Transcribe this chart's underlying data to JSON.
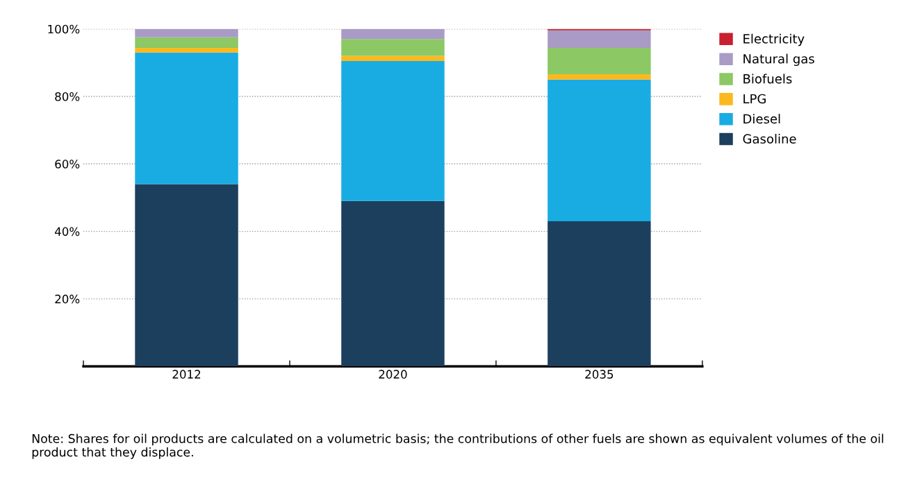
{
  "chart_data": {
    "type": "bar",
    "stacked": true,
    "categories": [
      "2012",
      "2020",
      "2035"
    ],
    "series": [
      {
        "name": "Gasoline",
        "color": "#1c3f5e",
        "values": [
          54,
          49,
          43
        ]
      },
      {
        "name": "Diesel",
        "color": "#19ace3",
        "values": [
          39,
          41.5,
          42
        ]
      },
      {
        "name": "LPG",
        "color": "#fbb91e",
        "values": [
          1.4,
          1.5,
          1.6
        ]
      },
      {
        "name": "Biofuels",
        "color": "#8cc864",
        "values": [
          3.1,
          5,
          7.8
        ]
      },
      {
        "name": "Natural gas",
        "color": "#a99bc6",
        "values": [
          2.5,
          3,
          5.2
        ]
      },
      {
        "name": "Electricity",
        "color": "#c8202f",
        "values": [
          0,
          0,
          0.4
        ]
      }
    ],
    "ylim": [
      0,
      100
    ],
    "yticks": [
      {
        "value": 20,
        "label": "20%"
      },
      {
        "value": 40,
        "label": "40%"
      },
      {
        "value": 60,
        "label": "60%"
      },
      {
        "value": 80,
        "label": "80%"
      },
      {
        "value": 100,
        "label": "100%"
      }
    ],
    "grid": "y",
    "legend": "top right",
    "annotations": [
      "Note: Shares for oil products are calculated on a volumetric basis; the contributions of other fuels are shown as equivalent volumes of the oil product that they displace."
    ]
  }
}
